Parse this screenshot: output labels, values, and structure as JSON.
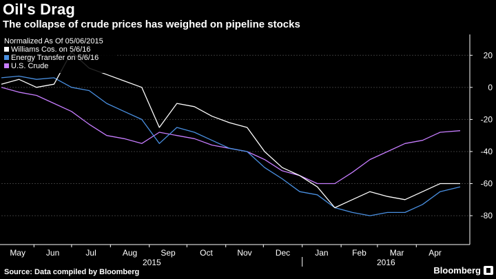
{
  "header": {
    "title": "Oil's Drag",
    "subtitle": "The collapse of crude prices has weighed on pipeline stocks"
  },
  "footer": {
    "source": "Source: Data compiled by Bloomberg",
    "brand": "Bloomberg"
  },
  "chart_data": {
    "type": "line",
    "title": "Oil's Drag",
    "subtitle": "The collapse of crude prices has weighed on pipeline stocks",
    "legend_title": "Normalized As Of 05/06/2015",
    "legend_position": "top-left",
    "x_tick_labels": [
      "May",
      "Jun",
      "Jul",
      "Aug",
      "Sep",
      "Oct",
      "Nov",
      "Dec",
      "Jan",
      "Feb",
      "Mar",
      "Apr"
    ],
    "year_labels": [
      "2015",
      "2016"
    ],
    "y_ticks": [
      20,
      0,
      -20,
      -40,
      -60,
      -80
    ],
    "ylim": [
      -98,
      33
    ],
    "y_axis_position": "right",
    "grid": true,
    "x": [
      "2015-05-06",
      "2015-05-20",
      "2015-06-03",
      "2015-06-17",
      "2015-07-01",
      "2015-07-15",
      "2015-07-29",
      "2015-08-12",
      "2015-08-26",
      "2015-09-09",
      "2015-09-23",
      "2015-10-07",
      "2015-10-21",
      "2015-11-04",
      "2015-11-18",
      "2015-12-02",
      "2015-12-16",
      "2015-12-30",
      "2016-01-13",
      "2016-01-27",
      "2016-02-10",
      "2016-02-24",
      "2016-03-09",
      "2016-03-23",
      "2016-04-06",
      "2016-04-20",
      "2016-05-06"
    ],
    "series": [
      {
        "name": "Williams Cos. on 5/6/16",
        "color": "#ffffff",
        "values": [
          2,
          5,
          0,
          2,
          22,
          12,
          8,
          4,
          0,
          -25,
          -10,
          -12,
          -18,
          -22,
          -25,
          -40,
          -50,
          -55,
          -62,
          -75,
          -70,
          -65,
          -68,
          -70,
          -65,
          -60,
          -60
        ]
      },
      {
        "name": "Energy Transfer on 5/6/16",
        "color": "#4a90e2",
        "values": [
          6,
          7,
          5,
          6,
          0,
          -2,
          -10,
          -15,
          -20,
          -35,
          -25,
          -28,
          -33,
          -38,
          -40,
          -50,
          -57,
          -65,
          -67,
          -75,
          -78,
          -80,
          -78,
          -78,
          -73,
          -65,
          -62
        ]
      },
      {
        "name": "U.S. Crude",
        "color": "#c77dff",
        "values": [
          0,
          -3,
          -5,
          -10,
          -15,
          -23,
          -30,
          -32,
          -35,
          -28,
          -30,
          -32,
          -36,
          -38,
          -40,
          -45,
          -52,
          -55,
          -60,
          -60,
          -53,
          -45,
          -40,
          -35,
          -33,
          -28,
          -27
        ]
      }
    ]
  }
}
